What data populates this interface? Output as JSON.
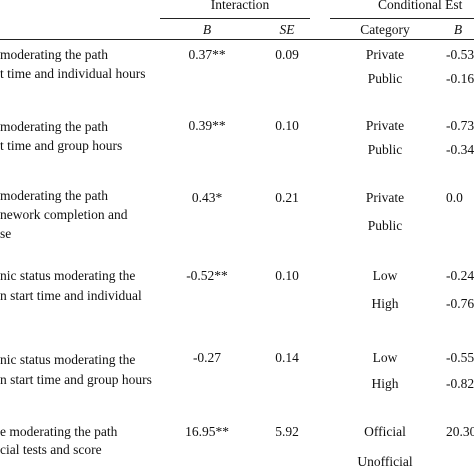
{
  "header": {
    "interaction": "Interaction",
    "conditional": "Conditional Est",
    "b": "B",
    "se": "SE",
    "category": "Category",
    "b2": "B"
  },
  "table": {
    "rows": [
      {
        "label": [
          "moderating the path",
          "t time and individual hours"
        ],
        "b": "0.37**",
        "se": "0.09",
        "groups": [
          {
            "category": "Private",
            "b": "-0.53"
          },
          {
            "category": "Public",
            "b": "-0.16"
          }
        ]
      },
      {
        "label": [
          "moderating the path",
          "t time and group hours"
        ],
        "b": "0.39**",
        "se": "0.10",
        "groups": [
          {
            "category": "Private",
            "b": "-0.73"
          },
          {
            "category": "Public",
            "b": "-0.34"
          }
        ]
      },
      {
        "label": [
          "moderating the path",
          "nework completion and",
          "se"
        ],
        "b": "0.43*",
        "se": "0.21",
        "groups": [
          {
            "category": "Private",
            "b": "0.0"
          },
          {
            "category": "Public"
          }
        ]
      },
      {
        "label": [
          "nic status moderating the",
          "n start time and individual"
        ],
        "b": "-0.52**",
        "se": "0.10",
        "groups": [
          {
            "category": "Low",
            "b": "-0.24"
          },
          {
            "category": "High",
            "b": "-0.76"
          }
        ]
      },
      {
        "label": [
          "nic status moderating the",
          "n start time and group hours"
        ],
        "b": "-0.27",
        "se": "0.14",
        "groups": [
          {
            "category": "Low",
            "b": "-0.55"
          },
          {
            "category": "High",
            "b": "-0.82"
          }
        ]
      },
      {
        "label": [
          "e moderating the path",
          "cial tests and score"
        ],
        "b": "16.95**",
        "se": "5.92",
        "groups": [
          {
            "category": "Official",
            "b": "20.30"
          },
          {
            "category": "Unofficial"
          }
        ]
      }
    ]
  }
}
